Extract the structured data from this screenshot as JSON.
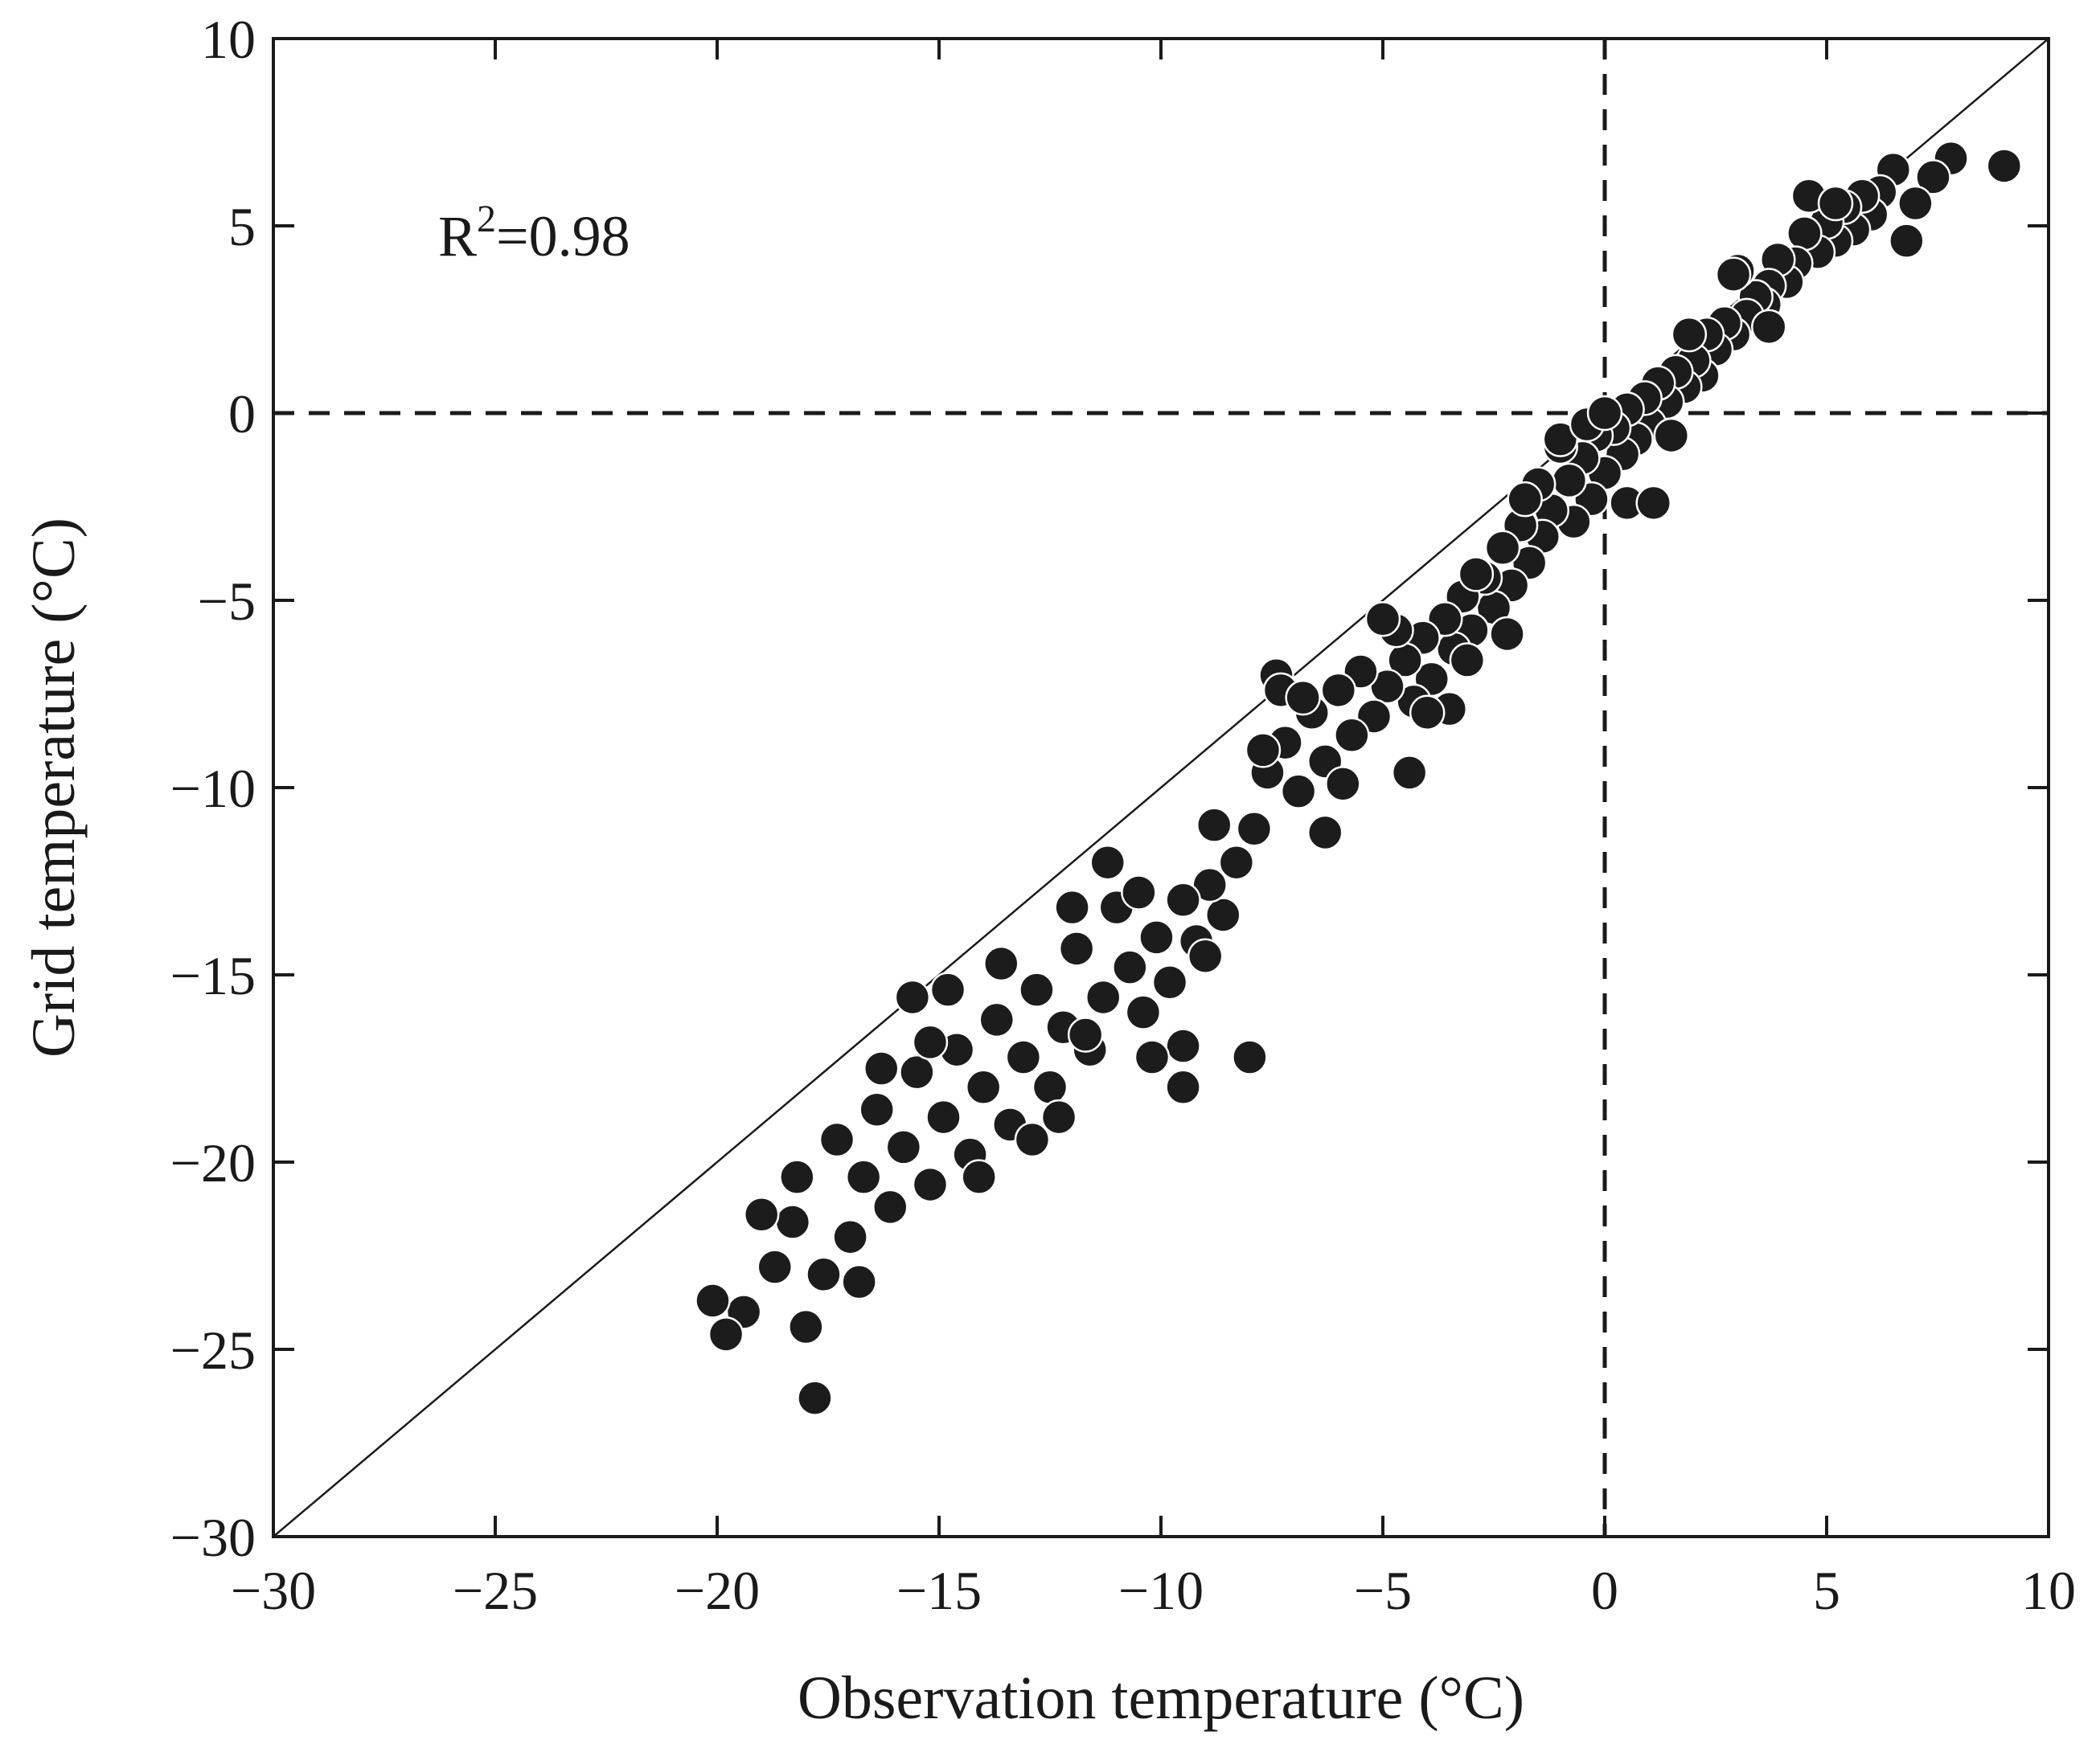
{
  "chart_data": {
    "type": "scatter",
    "title": "",
    "xlabel": "Observation temperature (°C)",
    "ylabel": "Grid temperature (°C)",
    "xlim": [
      -30,
      10
    ],
    "ylim": [
      -30,
      10
    ],
    "xticks": [
      -30,
      -25,
      -20,
      -15,
      -10,
      -5,
      0,
      5,
      10
    ],
    "yticks": [
      -30,
      -25,
      -20,
      -15,
      -10,
      -5,
      0,
      5,
      10
    ],
    "xtick_labels": [
      "−30",
      "−25",
      "−20",
      "−15",
      "−10",
      "−5",
      "0",
      "5",
      "10"
    ],
    "ytick_labels": [
      "−30",
      "−25",
      "−20",
      "−15",
      "−10",
      "−5",
      "0",
      "5",
      "10"
    ],
    "grid": false,
    "reference_lines": [
      {
        "kind": "identity",
        "style": "solid",
        "from": [
          -30,
          -30
        ],
        "to": [
          10,
          10
        ]
      },
      {
        "kind": "horizontal",
        "style": "dashed",
        "y": 0
      },
      {
        "kind": "vertical",
        "style": "dashed",
        "x": 0
      }
    ],
    "annotation": {
      "base": "R",
      "sup": "2",
      "rest": "=0.98"
    },
    "marker_color": "#1c1c1c",
    "marker_edge": "#ffffff",
    "series": [
      {
        "name": "stations",
        "points": [
          [
            9.0,
            6.6
          ],
          [
            7.8,
            6.8
          ],
          [
            7.4,
            6.3
          ],
          [
            7.0,
            5.6
          ],
          [
            6.8,
            4.6
          ],
          [
            6.5,
            6.5
          ],
          [
            6.2,
            5.9
          ],
          [
            6.0,
            5.3
          ],
          [
            5.8,
            5.8
          ],
          [
            5.6,
            4.9
          ],
          [
            5.4,
            5.5
          ],
          [
            5.2,
            4.6
          ],
          [
            5.0,
            5.1
          ],
          [
            4.8,
            4.3
          ],
          [
            4.6,
            5.8
          ],
          [
            4.5,
            4.8
          ],
          [
            4.3,
            4.0
          ],
          [
            4.1,
            3.5
          ],
          [
            3.9,
            4.1
          ],
          [
            3.7,
            3.4
          ],
          [
            3.6,
            2.9
          ],
          [
            3.4,
            3.1
          ],
          [
            3.2,
            2.6
          ],
          [
            3.0,
            3.8
          ],
          [
            2.9,
            2.1
          ],
          [
            2.7,
            2.4
          ],
          [
            2.5,
            1.7
          ],
          [
            2.3,
            2.1
          ],
          [
            2.2,
            1.0
          ],
          [
            2.0,
            1.4
          ],
          [
            1.8,
            0.7
          ],
          [
            1.6,
            1.1
          ],
          [
            1.4,
            0.3
          ],
          [
            1.2,
            0.8
          ],
          [
            1.0,
            -0.3
          ],
          [
            0.9,
            0.4
          ],
          [
            0.7,
            -0.7
          ],
          [
            0.5,
            0.1
          ],
          [
            0.4,
            -1.1
          ],
          [
            0.2,
            -0.4
          ],
          [
            0.0,
            -1.6
          ],
          [
            -0.2,
            -0.6
          ],
          [
            -0.3,
            -2.3
          ],
          [
            -0.5,
            -1.2
          ],
          [
            -0.7,
            -2.9
          ],
          [
            -0.8,
            -1.8
          ],
          [
            -1.0,
            -0.9
          ],
          [
            -1.2,
            -2.6
          ],
          [
            -1.4,
            -3.3
          ],
          [
            -1.5,
            -1.9
          ],
          [
            -1.7,
            -4.0
          ],
          [
            -1.9,
            -3.0
          ],
          [
            -2.1,
            -4.6
          ],
          [
            -2.3,
            -3.6
          ],
          [
            -2.5,
            -5.2
          ],
          [
            -2.7,
            -4.4
          ],
          [
            -3.0,
            -5.8
          ],
          [
            -3.2,
            -4.9
          ],
          [
            -3.4,
            -6.3
          ],
          [
            -3.6,
            -5.5
          ],
          [
            -3.9,
            -7.1
          ],
          [
            -4.1,
            -6.0
          ],
          [
            -4.3,
            -7.7
          ],
          [
            -4.5,
            -6.6
          ],
          [
            -4.7,
            -5.8
          ],
          [
            -4.9,
            -7.3
          ],
          [
            -5.2,
            -8.1
          ],
          [
            -5.5,
            -6.9
          ],
          [
            -5.7,
            -8.6
          ],
          [
            -6.0,
            -7.4
          ],
          [
            -6.3,
            -9.3
          ],
          [
            -6.6,
            -8.0
          ],
          [
            -6.9,
            -10.1
          ],
          [
            -7.2,
            -8.8
          ],
          [
            -7.4,
            -7.0
          ],
          [
            -7.6,
            -9.6
          ],
          [
            -7.9,
            -11.1
          ],
          [
            -8.3,
            -12.0
          ],
          [
            -8.6,
            -13.4
          ],
          [
            -8.9,
            -12.6
          ],
          [
            -9.2,
            -14.1
          ],
          [
            -9.5,
            -13.0
          ],
          [
            -9.8,
            -15.2
          ],
          [
            -10.1,
            -14.0
          ],
          [
            -10.4,
            -16.0
          ],
          [
            -10.7,
            -14.8
          ],
          [
            -11.0,
            -13.2
          ],
          [
            -11.3,
            -15.6
          ],
          [
            -11.6,
            -17.0
          ],
          [
            -11.9,
            -14.3
          ],
          [
            -12.2,
            -16.4
          ],
          [
            -12.5,
            -18.0
          ],
          [
            -12.8,
            -15.4
          ],
          [
            -13.1,
            -17.2
          ],
          [
            -13.4,
            -19.0
          ],
          [
            -13.7,
            -16.2
          ],
          [
            -14.0,
            -18.0
          ],
          [
            -14.3,
            -19.8
          ],
          [
            -14.6,
            -17.0
          ],
          [
            -14.9,
            -18.8
          ],
          [
            -15.2,
            -20.6
          ],
          [
            -15.5,
            -17.6
          ],
          [
            -15.8,
            -19.6
          ],
          [
            -16.1,
            -21.2
          ],
          [
            -16.4,
            -18.6
          ],
          [
            -16.7,
            -20.4
          ],
          [
            -17.0,
            -22.0
          ],
          [
            -17.3,
            -19.4
          ],
          [
            -17.6,
            -23.0
          ],
          [
            -18.0,
            -24.4
          ],
          [
            -18.3,
            -21.6
          ],
          [
            -18.7,
            -22.8
          ],
          [
            -19.0,
            -21.4
          ],
          [
            -19.4,
            -24.0
          ],
          [
            -19.8,
            -24.6
          ],
          [
            -20.1,
            -23.7
          ],
          [
            -17.8,
            -26.3
          ],
          [
            -18.2,
            -20.4
          ],
          [
            -16.8,
            -23.2
          ],
          [
            -15.6,
            -15.6
          ],
          [
            -14.8,
            -15.4
          ],
          [
            -11.2,
            -12.0
          ],
          [
            -9.5,
            -18.0
          ],
          [
            -8.0,
            -17.2
          ],
          [
            -9.5,
            -16.9
          ],
          [
            -4.4,
            -9.6
          ],
          [
            -7.3,
            -7.4
          ],
          [
            -6.3,
            -11.2
          ],
          [
            -1.8,
            -2.3
          ],
          [
            0.5,
            -2.4
          ],
          [
            1.1,
            -2.4
          ],
          [
            -8.8,
            -11.0
          ],
          [
            -10.2,
            -17.2
          ],
          [
            -12.9,
            -19.4
          ],
          [
            -13.6,
            -14.7
          ],
          [
            -3.5,
            -7.9
          ],
          [
            -2.2,
            -5.9
          ],
          [
            -1.0,
            -0.7
          ],
          [
            -0.4,
            -0.3
          ],
          [
            0.0,
            0.0
          ],
          [
            1.9,
            2.1
          ],
          [
            2.9,
            3.7
          ],
          [
            3.7,
            2.3
          ],
          [
            5.2,
            5.6
          ],
          [
            -12.0,
            -13.2
          ],
          [
            -10.5,
            -12.8
          ],
          [
            -9.0,
            -14.5
          ],
          [
            -6.8,
            -7.6
          ],
          [
            -5.0,
            -5.5
          ],
          [
            -2.9,
            -4.3
          ],
          [
            -15.2,
            -16.8
          ],
          [
            -16.3,
            -17.5
          ],
          [
            -14.1,
            -20.4
          ],
          [
            -12.3,
            -18.8
          ],
          [
            -11.7,
            -16.6
          ],
          [
            -7.7,
            -9.0
          ],
          [
            -5.9,
            -9.9
          ],
          [
            -4.0,
            -8.0
          ],
          [
            -3.1,
            -6.6
          ],
          [
            1.5,
            -0.6
          ]
        ]
      }
    ]
  }
}
